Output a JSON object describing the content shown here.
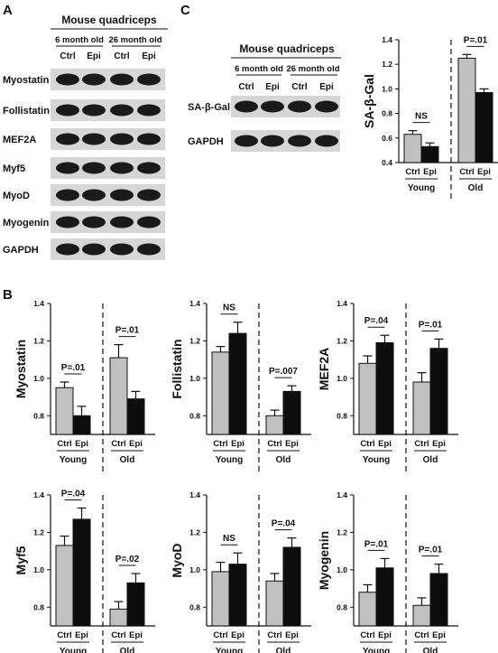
{
  "panels": {
    "A": "A",
    "B": "B",
    "C": "C"
  },
  "blot_A": {
    "title": "Mouse quadriceps",
    "ages": [
      "6 month old",
      "26 month old"
    ],
    "lanes": [
      "Ctrl",
      "Epi",
      "Ctrl",
      "Epi"
    ],
    "rows": [
      "Myostatin",
      "Follistatin",
      "MEF2A",
      "Myf5",
      "MyoD",
      "Myogenin",
      "GAPDH"
    ]
  },
  "blot_C": {
    "title": "Mouse quadriceps",
    "ages": [
      "6 month old",
      "26 month old"
    ],
    "lanes": [
      "Ctrl",
      "Epi",
      "Ctrl",
      "Epi"
    ],
    "rows": [
      "SA-β-Gal",
      "GAPDH"
    ]
  },
  "colors": {
    "ctrl": "#c0c0c0",
    "epi": "#0d0d0d",
    "axis": "#111111"
  },
  "chart_data": [
    {
      "id": "sa-b-gal",
      "type": "bar",
      "ylabel": "SA-β-Gal",
      "ylim": [
        0.4,
        1.4
      ],
      "yticks": [
        "0.4",
        "0.6",
        "0.8",
        "1.0",
        "1.2",
        "1.4"
      ],
      "groups": [
        "Young",
        "Old"
      ],
      "categories": [
        "Ctrl",
        "Epi"
      ],
      "series": [
        {
          "name": "Ctrl",
          "values": [
            0.63,
            1.25
          ],
          "errors": [
            0.03,
            0.03
          ]
        },
        {
          "name": "Epi",
          "values": [
            0.53,
            0.97
          ],
          "errors": [
            0.03,
            0.03
          ]
        }
      ],
      "annotations": [
        "NS",
        "P=.01"
      ]
    },
    {
      "id": "myostatin",
      "type": "bar",
      "ylabel": "Myostatin",
      "ylim": [
        0.7,
        1.4
      ],
      "yticks": [
        "0.8",
        "1.0",
        "1.2",
        "1.4"
      ],
      "groups": [
        "Young",
        "Old"
      ],
      "categories": [
        "Ctrl",
        "Epi"
      ],
      "series": [
        {
          "name": "Ctrl",
          "values": [
            0.95,
            1.11
          ],
          "errors": [
            0.03,
            0.07
          ]
        },
        {
          "name": "Epi",
          "values": [
            0.8,
            0.89
          ],
          "errors": [
            0.05,
            0.04
          ]
        }
      ],
      "annotations": [
        "P=.01",
        "P=.01"
      ]
    },
    {
      "id": "follistatin",
      "type": "bar",
      "ylabel": "Follistatin",
      "ylim": [
        0.7,
        1.4
      ],
      "yticks": [
        "0.8",
        "1.0",
        "1.2",
        "1.4"
      ],
      "groups": [
        "Young",
        "Old"
      ],
      "categories": [
        "Ctrl",
        "Epi"
      ],
      "series": [
        {
          "name": "Ctrl",
          "values": [
            1.14,
            0.8
          ],
          "errors": [
            0.03,
            0.03
          ]
        },
        {
          "name": "Epi",
          "values": [
            1.24,
            0.93
          ],
          "errors": [
            0.06,
            0.03
          ]
        }
      ],
      "annotations": [
        "NS",
        "P=.007"
      ]
    },
    {
      "id": "mef2a",
      "type": "bar",
      "ylabel": "MEF2A",
      "ylim": [
        0.7,
        1.4
      ],
      "yticks": [
        "0.8",
        "1.0",
        "1.2",
        "1.4"
      ],
      "groups": [
        "Young",
        "Old"
      ],
      "categories": [
        "Ctrl",
        "Epi"
      ],
      "series": [
        {
          "name": "Ctrl",
          "values": [
            1.08,
            0.98
          ],
          "errors": [
            0.04,
            0.05
          ]
        },
        {
          "name": "Epi",
          "values": [
            1.19,
            1.16
          ],
          "errors": [
            0.04,
            0.05
          ]
        }
      ],
      "annotations": [
        "P=.04",
        "P=.01"
      ]
    },
    {
      "id": "myf5",
      "type": "bar",
      "ylabel": "Myf5",
      "ylim": [
        0.7,
        1.4
      ],
      "yticks": [
        "0.8",
        "1.0",
        "1.2",
        "1.4"
      ],
      "groups": [
        "Young",
        "Old"
      ],
      "categories": [
        "Ctrl",
        "Epi"
      ],
      "series": [
        {
          "name": "Ctrl",
          "values": [
            1.13,
            0.79
          ],
          "errors": [
            0.05,
            0.04
          ]
        },
        {
          "name": "Epi",
          "values": [
            1.27,
            0.93
          ],
          "errors": [
            0.06,
            0.05
          ]
        }
      ],
      "annotations": [
        "P=.04",
        "P=.02"
      ]
    },
    {
      "id": "myod",
      "type": "bar",
      "ylabel": "MyoD",
      "ylim": [
        0.7,
        1.4
      ],
      "yticks": [
        "0.8",
        "1.0",
        "1.2",
        "1.4"
      ],
      "groups": [
        "Young",
        "Old"
      ],
      "categories": [
        "Ctrl",
        "Epi"
      ],
      "series": [
        {
          "name": "Ctrl",
          "values": [
            0.99,
            0.94
          ],
          "errors": [
            0.05,
            0.04
          ]
        },
        {
          "name": "Epi",
          "values": [
            1.03,
            1.12
          ],
          "errors": [
            0.06,
            0.05
          ]
        }
      ],
      "annotations": [
        "NS",
        "P=.04"
      ]
    },
    {
      "id": "myogenin",
      "type": "bar",
      "ylabel": "Myogenin",
      "ylim": [
        0.7,
        1.4
      ],
      "yticks": [
        "0.8",
        "1.0",
        "1.2",
        "1.4"
      ],
      "groups": [
        "Young",
        "Old"
      ],
      "categories": [
        "Ctrl",
        "Epi"
      ],
      "series": [
        {
          "name": "Ctrl",
          "values": [
            0.88,
            0.81
          ],
          "errors": [
            0.04,
            0.04
          ]
        },
        {
          "name": "Epi",
          "values": [
            1.01,
            0.98
          ],
          "errors": [
            0.05,
            0.05
          ]
        }
      ],
      "annotations": [
        "P=.01",
        "P=.01"
      ]
    }
  ]
}
